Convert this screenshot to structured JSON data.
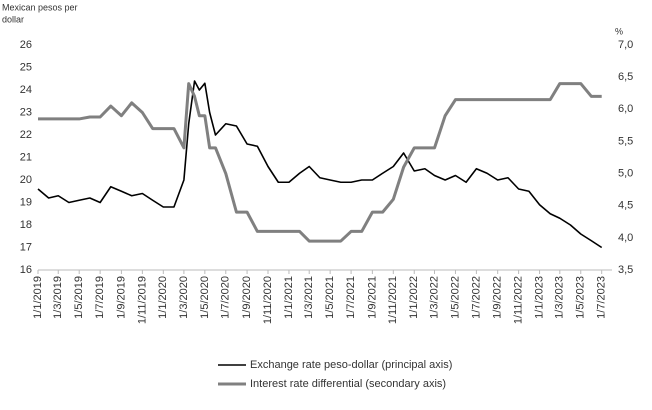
{
  "chart_data": {
    "type": "line",
    "y_label": "Mexican pesos per dollar",
    "y2_label": "%",
    "x": [
      "1/1/2019",
      "1/2/2019",
      "1/3/2019",
      "1/4/2019",
      "1/5/2019",
      "1/6/2019",
      "1/7/2019",
      "1/8/2019",
      "1/9/2019",
      "1/10/2019",
      "1/11/2019",
      "1/12/2019",
      "1/1/2020",
      "1/2/2020",
      "1/3/2020",
      "15/3/2020",
      "1/4/2020",
      "15/4/2020",
      "1/5/2020",
      "15/5/2020",
      "1/6/2020",
      "1/7/2020",
      "1/8/2020",
      "1/9/2020",
      "1/10/2020",
      "1/11/2020",
      "1/12/2020",
      "1/1/2021",
      "1/2/2021",
      "1/3/2021",
      "1/4/2021",
      "1/5/2021",
      "1/6/2021",
      "1/7/2021",
      "1/8/2021",
      "1/9/2021",
      "1/10/2021",
      "1/11/2021",
      "1/12/2021",
      "1/1/2022",
      "1/2/2022",
      "1/3/2022",
      "1/4/2022",
      "1/5/2022",
      "1/6/2022",
      "1/7/2022",
      "1/8/2022",
      "1/9/2022",
      "1/10/2022",
      "1/11/2022",
      "1/12/2022",
      "1/1/2023",
      "1/2/2023",
      "1/3/2023",
      "1/4/2023",
      "1/5/2023",
      "1/6/2023",
      "1/7/2023"
    ],
    "series": [
      {
        "name": "Exchange rate peso-dollar (principal axis)",
        "color": "#000000",
        "axis": "y",
        "values": [
          19.6,
          19.2,
          19.3,
          19.0,
          19.1,
          19.2,
          19.0,
          19.7,
          19.5,
          19.3,
          19.4,
          19.1,
          18.8,
          18.8,
          20.0,
          22.5,
          24.4,
          24.0,
          24.3,
          23.0,
          22.0,
          22.5,
          22.4,
          21.6,
          21.5,
          20.6,
          19.9,
          19.9,
          20.3,
          20.6,
          20.1,
          20.0,
          19.9,
          19.9,
          20.0,
          20.0,
          20.3,
          20.6,
          21.2,
          20.4,
          20.5,
          20.2,
          20.0,
          20.2,
          19.9,
          20.5,
          20.3,
          20.0,
          20.1,
          19.6,
          19.5,
          18.9,
          18.5,
          18.3,
          18.0,
          17.6,
          17.3,
          17.0
        ]
      },
      {
        "name": "Interest rate differential (secondary axis)",
        "color": "#808080",
        "axis": "y2",
        "values": [
          5.85,
          5.85,
          5.85,
          5.85,
          5.85,
          5.88,
          5.88,
          6.05,
          5.9,
          6.1,
          5.95,
          5.7,
          5.7,
          5.7,
          5.4,
          6.4,
          6.2,
          5.9,
          5.9,
          5.4,
          5.4,
          5.0,
          4.4,
          4.4,
          4.1,
          4.1,
          4.1,
          4.1,
          4.1,
          3.95,
          3.95,
          3.95,
          3.95,
          4.1,
          4.1,
          4.4,
          4.4,
          4.6,
          5.1,
          5.4,
          5.4,
          5.4,
          5.9,
          6.15,
          6.15,
          6.15,
          6.15,
          6.15,
          6.15,
          6.15,
          6.15,
          6.15,
          6.15,
          6.4,
          6.4,
          6.4,
          6.2,
          6.2
        ]
      }
    ],
    "xlim": [
      "1/1/2019",
      "31/7/2023"
    ],
    "xticks": [
      "1/1/2019",
      "1/3/2019",
      "1/5/2019",
      "1/7/2019",
      "1/9/2019",
      "1/11/2019",
      "1/1/2020",
      "1/3/2020",
      "1/5/2020",
      "1/7/2020",
      "1/9/2020",
      "1/11/2020",
      "1/1/2021",
      "1/3/2021",
      "1/5/2021",
      "1/7/2021",
      "1/9/2021",
      "1/11/2021",
      "1/1/2022",
      "1/3/2022",
      "1/5/2022",
      "1/7/2022",
      "1/9/2022",
      "1/11/2022",
      "1/1/2023",
      "1/3/2023",
      "1/5/2023",
      "1/7/2023"
    ],
    "ylim": [
      16,
      26
    ],
    "yticks": [
      16,
      17,
      18,
      19,
      20,
      21,
      22,
      23,
      24,
      25,
      26
    ],
    "y2lim": [
      3.5,
      7.0
    ],
    "y2ticks": [
      {
        "value": 3.5,
        "label": "3,5"
      },
      {
        "value": 4.0,
        "label": "4,0"
      },
      {
        "value": 4.5,
        "label": "4,5"
      },
      {
        "value": 5.0,
        "label": "5,0"
      },
      {
        "value": 5.5,
        "label": "5,5"
      },
      {
        "value": 6.0,
        "label": "6,0"
      },
      {
        "value": 6.5,
        "label": "6,5"
      },
      {
        "value": 7.0,
        "label": "7,0"
      }
    ],
    "legend": "bottom"
  }
}
